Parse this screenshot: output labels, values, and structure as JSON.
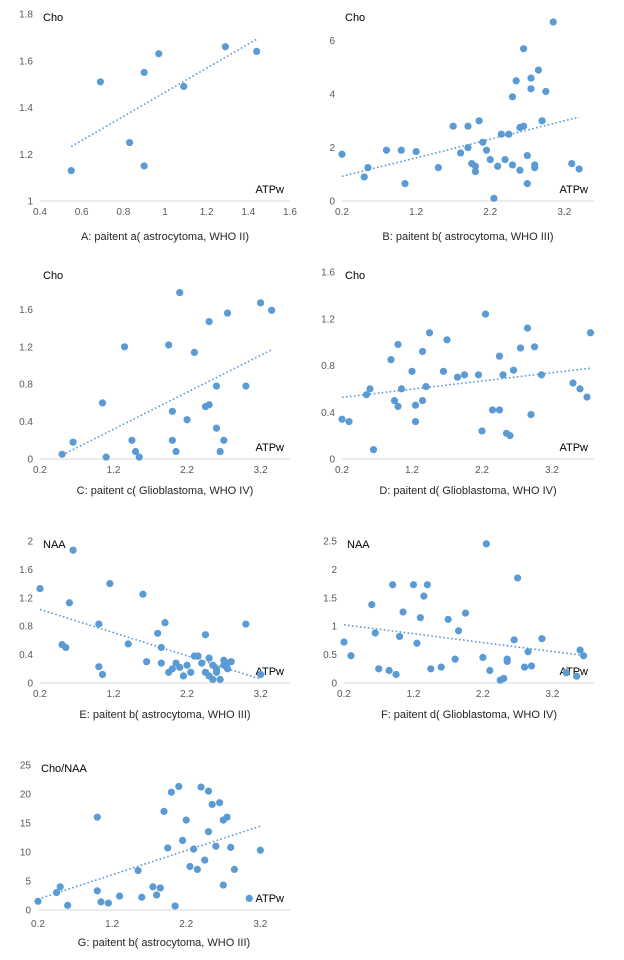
{
  "chart_data": [
    {
      "type": "scatter",
      "title": "A: paitent a( astrocytoma, WHO II)",
      "ylabel": "Cho",
      "xlabel": "ATPw",
      "xlim": [
        0.4,
        1.6
      ],
      "ylim": [
        1.0,
        1.8
      ],
      "xticks": [
        "0.4",
        "0.6",
        "0.8",
        "1",
        "1.2",
        "1.4",
        "1.6"
      ],
      "yticks": [
        "1",
        "1.2",
        "1.4",
        "1.6",
        "1.8"
      ],
      "trendline": "linear",
      "x": [
        0.55,
        0.69,
        0.83,
        0.9,
        0.9,
        0.97,
        1.09,
        1.29,
        1.44
      ],
      "y": [
        1.13,
        1.51,
        1.25,
        1.15,
        1.55,
        1.63,
        1.49,
        1.66,
        1.64
      ]
    },
    {
      "type": "scatter",
      "title": "B: paitent b( astrocytoma, WHO III)",
      "ylabel": "Cho",
      "xlabel": "ATPw",
      "xlim": [
        0.2,
        3.6
      ],
      "ylim": [
        0,
        7
      ],
      "xticks": [
        "0.2",
        "1.2",
        "2.2",
        "3.2"
      ],
      "yticks": [
        "0",
        "2",
        "4",
        "6"
      ],
      "trendline": "linear",
      "x": [
        0.2,
        0.5,
        0.55,
        0.8,
        1.0,
        1.05,
        1.2,
        1.5,
        1.7,
        1.8,
        1.9,
        1.9,
        1.95,
        2.0,
        2.05,
        2.1,
        2.15,
        2.2,
        2.25,
        2.3,
        2.35,
        2.4,
        2.45,
        2.5,
        2.5,
        2.55,
        2.6,
        2.6,
        2.65,
        2.65,
        2.7,
        2.7,
        2.75,
        2.75,
        2.8,
        2.8,
        2.85,
        2.9,
        2.95,
        3.05,
        3.3,
        3.4,
        2.0
      ],
      "y": [
        1.75,
        0.9,
        1.25,
        1.9,
        1.9,
        0.65,
        1.85,
        1.25,
        2.8,
        1.8,
        2.0,
        2.8,
        1.4,
        1.1,
        3.0,
        2.2,
        1.9,
        1.55,
        0.1,
        1.3,
        2.5,
        1.55,
        2.5,
        3.9,
        1.35,
        4.5,
        1.15,
        2.75,
        2.8,
        5.7,
        1.7,
        0.65,
        4.2,
        4.6,
        1.35,
        1.25,
        4.9,
        3.0,
        4.1,
        6.7,
        1.4,
        1.2,
        1.3
      ]
    },
    {
      "type": "scatter",
      "title": "C: paitent c( Glioblastoma, WHO IV)",
      "ylabel": "Cho",
      "xlabel": "ATPw",
      "xlim": [
        0.2,
        3.6
      ],
      "ylim": [
        0,
        2.0
      ],
      "xticks": [
        "0.2",
        "1.2",
        "2.2",
        "3.2"
      ],
      "yticks": [
        "0",
        "0.4",
        "0.8",
        "1.2",
        "1.6"
      ],
      "trendline": "linear",
      "x": [
        0.5,
        0.65,
        1.05,
        1.1,
        1.35,
        1.45,
        1.5,
        1.55,
        1.95,
        2.0,
        2.0,
        2.05,
        2.1,
        2.2,
        2.3,
        2.45,
        2.5,
        2.5,
        2.6,
        2.6,
        2.65,
        2.7,
        2.75,
        3.0,
        3.2,
        3.35
      ],
      "y": [
        0.05,
        0.18,
        0.6,
        0.02,
        1.2,
        0.2,
        0.08,
        0.02,
        1.22,
        0.51,
        0.2,
        0.08,
        1.78,
        0.42,
        1.14,
        0.56,
        0.58,
        1.47,
        0.78,
        0.33,
        0.08,
        0.2,
        1.56,
        0.78,
        1.67,
        1.59
      ]
    },
    {
      "type": "scatter",
      "title": "D: paitent d( Glioblastoma, WHO IV)",
      "ylabel": "Cho",
      "xlabel": "ATPw",
      "xlim": [
        0.2,
        3.8
      ],
      "ylim": [
        0,
        1.6
      ],
      "xticks": [
        "0.2",
        "1.2",
        "2.2",
        "3.2"
      ],
      "yticks": [
        "0",
        "0.4",
        "0.8",
        "1.2",
        "1.6"
      ],
      "trendline": "linear",
      "x": [
        0.2,
        0.3,
        0.55,
        0.6,
        0.65,
        0.9,
        0.95,
        1.0,
        1.0,
        1.05,
        1.2,
        1.25,
        1.25,
        1.35,
        1.35,
        1.4,
        1.45,
        1.65,
        1.7,
        1.85,
        1.95,
        2.15,
        2.2,
        2.25,
        2.35,
        2.45,
        2.45,
        2.5,
        2.55,
        2.6,
        2.65,
        2.75,
        2.85,
        2.9,
        2.95,
        3.05,
        3.5,
        3.6,
        3.7,
        3.75
      ],
      "y": [
        0.34,
        0.32,
        0.55,
        0.6,
        0.08,
        0.85,
        0.5,
        0.45,
        0.98,
        0.6,
        0.75,
        0.46,
        0.32,
        0.5,
        0.92,
        0.62,
        1.08,
        0.75,
        1.02,
        0.7,
        0.72,
        0.72,
        0.24,
        1.24,
        0.42,
        0.42,
        0.88,
        0.72,
        0.22,
        0.2,
        0.76,
        0.95,
        1.12,
        0.38,
        0.96,
        0.72,
        0.65,
        0.6,
        0.53,
        1.08
      ]
    },
    {
      "type": "scatter",
      "title": "E: paitent b( astrocytoma, WHO III)",
      "ylabel": "NAA",
      "xlabel": "ATPw",
      "xlim": [
        0.2,
        3.6
      ],
      "ylim": [
        0,
        2.0
      ],
      "xticks": [
        "0.2",
        "1.2",
        "2.2",
        "3.2"
      ],
      "yticks": [
        "0",
        "0.4",
        "0.8",
        "1.2",
        "1.6",
        "2"
      ],
      "trendline": "linear",
      "x": [
        0.2,
        0.5,
        0.55,
        0.6,
        0.65,
        1.0,
        1.0,
        1.05,
        1.15,
        1.4,
        1.6,
        1.65,
        1.8,
        1.85,
        1.85,
        1.9,
        1.95,
        2.0,
        2.05,
        2.1,
        2.15,
        2.2,
        2.25,
        2.3,
        2.35,
        2.4,
        2.45,
        2.45,
        2.5,
        2.5,
        2.55,
        2.55,
        2.6,
        2.6,
        2.65,
        2.7,
        2.7,
        2.75,
        2.75,
        2.8,
        3.0,
        3.2
      ],
      "y": [
        1.33,
        0.54,
        0.5,
        1.13,
        1.87,
        0.83,
        0.23,
        0.12,
        1.4,
        0.55,
        1.25,
        0.3,
        0.7,
        0.5,
        0.28,
        0.85,
        0.15,
        0.2,
        0.28,
        0.22,
        0.1,
        0.25,
        0.15,
        0.38,
        0.38,
        0.28,
        0.68,
        0.15,
        0.1,
        0.35,
        0.05,
        0.25,
        0.2,
        0.15,
        0.05,
        0.25,
        0.32,
        0.28,
        0.2,
        0.3,
        0.83,
        0.12
      ]
    },
    {
      "type": "scatter",
      "title": "F: paitent d( Glioblastoma, WHO IV)",
      "ylabel": "NAA",
      "xlabel": "ATPw",
      "xlim": [
        0.2,
        3.8
      ],
      "ylim": [
        0,
        2.5
      ],
      "xticks": [
        "0.2",
        "1.2",
        "2.2",
        "3.2"
      ],
      "yticks": [
        "0",
        "0.5",
        "1",
        "1.5",
        "2",
        "2.5"
      ],
      "trendline": "linear",
      "x": [
        0.2,
        0.3,
        0.6,
        0.65,
        0.7,
        0.85,
        0.9,
        0.95,
        1.0,
        1.05,
        1.2,
        1.25,
        1.3,
        1.35,
        1.4,
        1.45,
        1.6,
        1.7,
        1.8,
        1.85,
        1.95,
        2.2,
        2.25,
        2.3,
        2.45,
        2.5,
        2.55,
        2.55,
        2.65,
        2.7,
        2.8,
        2.85,
        2.9,
        3.05,
        3.4,
        3.55,
        3.6,
        3.65
      ],
      "y": [
        0.72,
        0.48,
        1.38,
        0.88,
        0.25,
        0.22,
        1.73,
        0.15,
        0.82,
        1.25,
        1.73,
        0.7,
        1.15,
        1.53,
        1.73,
        0.25,
        0.28,
        1.12,
        0.42,
        0.92,
        1.23,
        0.45,
        2.45,
        0.22,
        0.05,
        0.08,
        0.42,
        0.38,
        0.76,
        1.85,
        0.28,
        0.55,
        0.3,
        0.78,
        0.18,
        0.12,
        0.58,
        0.48
      ]
    },
    {
      "type": "scatter",
      "title": "G: paitent b( astrocytoma, WHO III)",
      "ylabel": "Cho/NAA",
      "xlabel": "ATPw",
      "xlim": [
        0.2,
        3.6
      ],
      "ylim": [
        0,
        25
      ],
      "xticks": [
        "0.2",
        "1.2",
        "2.2",
        "3.2"
      ],
      "yticks": [
        "0",
        "5",
        "10",
        "15",
        "20",
        "25"
      ],
      "trendline": "linear",
      "x": [
        0.2,
        0.45,
        0.5,
        0.6,
        1.0,
        1.0,
        1.05,
        1.15,
        1.3,
        1.55,
        1.6,
        1.75,
        1.8,
        1.85,
        1.9,
        1.95,
        2.0,
        2.05,
        2.1,
        2.15,
        2.2,
        2.25,
        2.3,
        2.35,
        2.4,
        2.45,
        2.5,
        2.5,
        2.55,
        2.6,
        2.65,
        2.7,
        2.7,
        2.75,
        2.8,
        2.85,
        3.05,
        3.2
      ],
      "y": [
        1.5,
        3.0,
        4.0,
        0.8,
        16.0,
        3.3,
        1.4,
        1.2,
        2.4,
        6.8,
        2.2,
        4.0,
        2.6,
        3.8,
        17.0,
        10.7,
        20.3,
        0.7,
        21.3,
        12.0,
        15.5,
        7.5,
        10.5,
        7.0,
        21.2,
        8.6,
        13.5,
        20.5,
        18.2,
        11.0,
        18.5,
        4.3,
        15.5,
        16.0,
        10.8,
        7.0,
        2.0,
        10.3
      ]
    }
  ]
}
